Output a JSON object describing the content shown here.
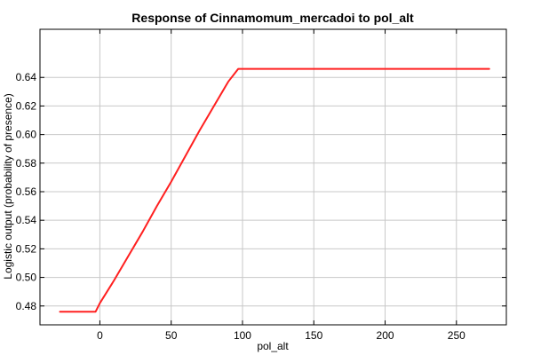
{
  "chart_data": {
    "type": "line",
    "title": "Response of Cinnamomum_mercadoi to pol_alt",
    "xlabel": "pol_alt",
    "ylabel": "Logistic output (probability of presence)",
    "xlim": [
      -42,
      285
    ],
    "ylim": [
      0.4668,
      0.6737
    ],
    "grid": true,
    "legend": "none",
    "xticks": [
      0,
      50,
      100,
      150,
      200,
      250
    ],
    "yticks": [
      0.48,
      0.5,
      0.52,
      0.54,
      0.56,
      0.58,
      0.6,
      0.62,
      0.64
    ],
    "ytick_decimals": 2,
    "series": [
      {
        "color": "#ff2020",
        "x": [
          -28,
          -3,
          0,
          10,
          20,
          30,
          40,
          50,
          60,
          70,
          80,
          90,
          97,
          120,
          150,
          200,
          250,
          273
        ],
        "y": [
          0.476,
          0.476,
          0.482,
          0.498,
          0.515,
          0.532,
          0.55,
          0.567,
          0.585,
          0.603,
          0.62,
          0.637,
          0.646,
          0.646,
          0.646,
          0.646,
          0.646,
          0.646
        ]
      }
    ]
  }
}
